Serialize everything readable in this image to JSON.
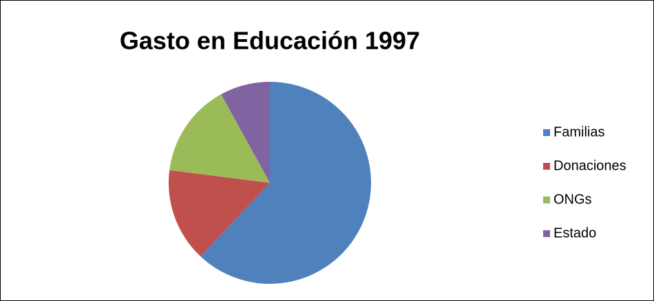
{
  "chart_data": {
    "type": "pie",
    "title": "Gasto en Educación 1997",
    "categories": [
      "Familias",
      "Donaciones",
      "ONGs",
      "Estado"
    ],
    "values": [
      62,
      15,
      15,
      8
    ],
    "colors": [
      "#4f81bd",
      "#c0504d",
      "#9bbb59",
      "#8064a2"
    ],
    "legend": "right"
  }
}
